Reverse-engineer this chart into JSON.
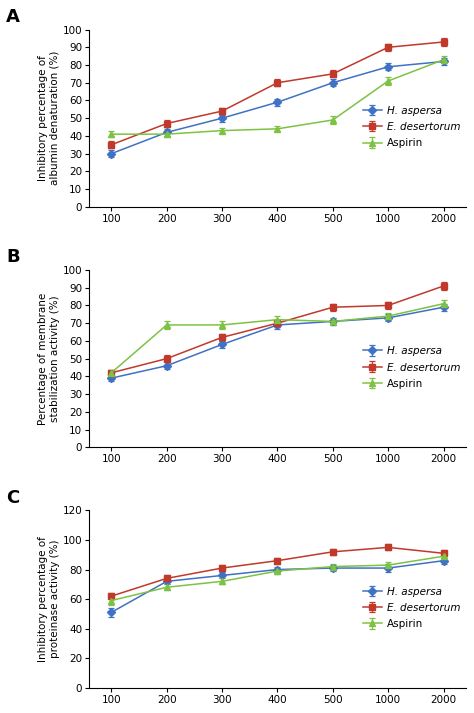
{
  "x": [
    100,
    200,
    300,
    400,
    500,
    1000,
    2000
  ],
  "chart_A": {
    "h_aspersa": [
      30,
      42,
      50,
      59,
      70,
      79,
      82
    ],
    "e_desertorum": [
      35,
      47,
      54,
      70,
      75,
      90,
      93
    ],
    "aspirin": [
      41,
      41,
      43,
      44,
      49,
      71,
      83
    ],
    "h_aspersa_err": [
      2,
      2,
      2,
      2,
      2,
      2,
      2
    ],
    "e_desertorum_err": [
      2,
      2,
      2,
      2,
      2,
      2,
      2
    ],
    "aspirin_err": [
      1.5,
      1.5,
      1.5,
      1.5,
      2,
      2,
      2
    ],
    "ylabel": "Inhibitory percentage of\nalbumin denaturation (%)",
    "ylim": [
      0,
      100
    ],
    "yticks": [
      0,
      10,
      20,
      30,
      40,
      50,
      60,
      70,
      80,
      90,
      100
    ]
  },
  "chart_B": {
    "h_aspersa": [
      39,
      46,
      58,
      69,
      71,
      73,
      79
    ],
    "e_desertorum": [
      42,
      50,
      62,
      70,
      79,
      80,
      91
    ],
    "aspirin": [
      42,
      69,
      69,
      72,
      71,
      74,
      81
    ],
    "h_aspersa_err": [
      1.5,
      2,
      2,
      2,
      2,
      2,
      2
    ],
    "e_desertorum_err": [
      1.5,
      2,
      2,
      2,
      2,
      2,
      2
    ],
    "aspirin_err": [
      1.5,
      2,
      2,
      2,
      2,
      2,
      2
    ],
    "ylabel": "Percentage of membrane\nstabilization activity (%)",
    "ylim": [
      0,
      100
    ],
    "yticks": [
      0,
      10,
      20,
      30,
      40,
      50,
      60,
      70,
      80,
      90,
      100
    ]
  },
  "chart_C": {
    "h_aspersa": [
      51,
      72,
      76,
      80,
      81,
      81,
      86
    ],
    "e_desertorum": [
      62,
      74,
      81,
      86,
      92,
      95,
      91
    ],
    "aspirin": [
      59,
      68,
      72,
      79,
      82,
      83,
      89
    ],
    "h_aspersa_err": [
      3,
      2,
      2,
      2,
      2,
      3,
      2
    ],
    "e_desertorum_err": [
      2,
      2,
      2,
      2,
      2,
      2,
      2
    ],
    "aspirin_err": [
      3,
      2,
      2,
      2,
      2,
      2,
      2
    ],
    "ylabel": "Inhibitory percentage of\nproteinase activity (%)",
    "ylim": [
      0,
      120
    ],
    "yticks": [
      0,
      20,
      40,
      60,
      80,
      100,
      120
    ]
  },
  "colors": {
    "h_aspersa": "#3F71C4",
    "e_desertorum": "#C0392B",
    "aspirin": "#7DC243"
  },
  "panel_labels": [
    "A",
    "B",
    "C"
  ]
}
